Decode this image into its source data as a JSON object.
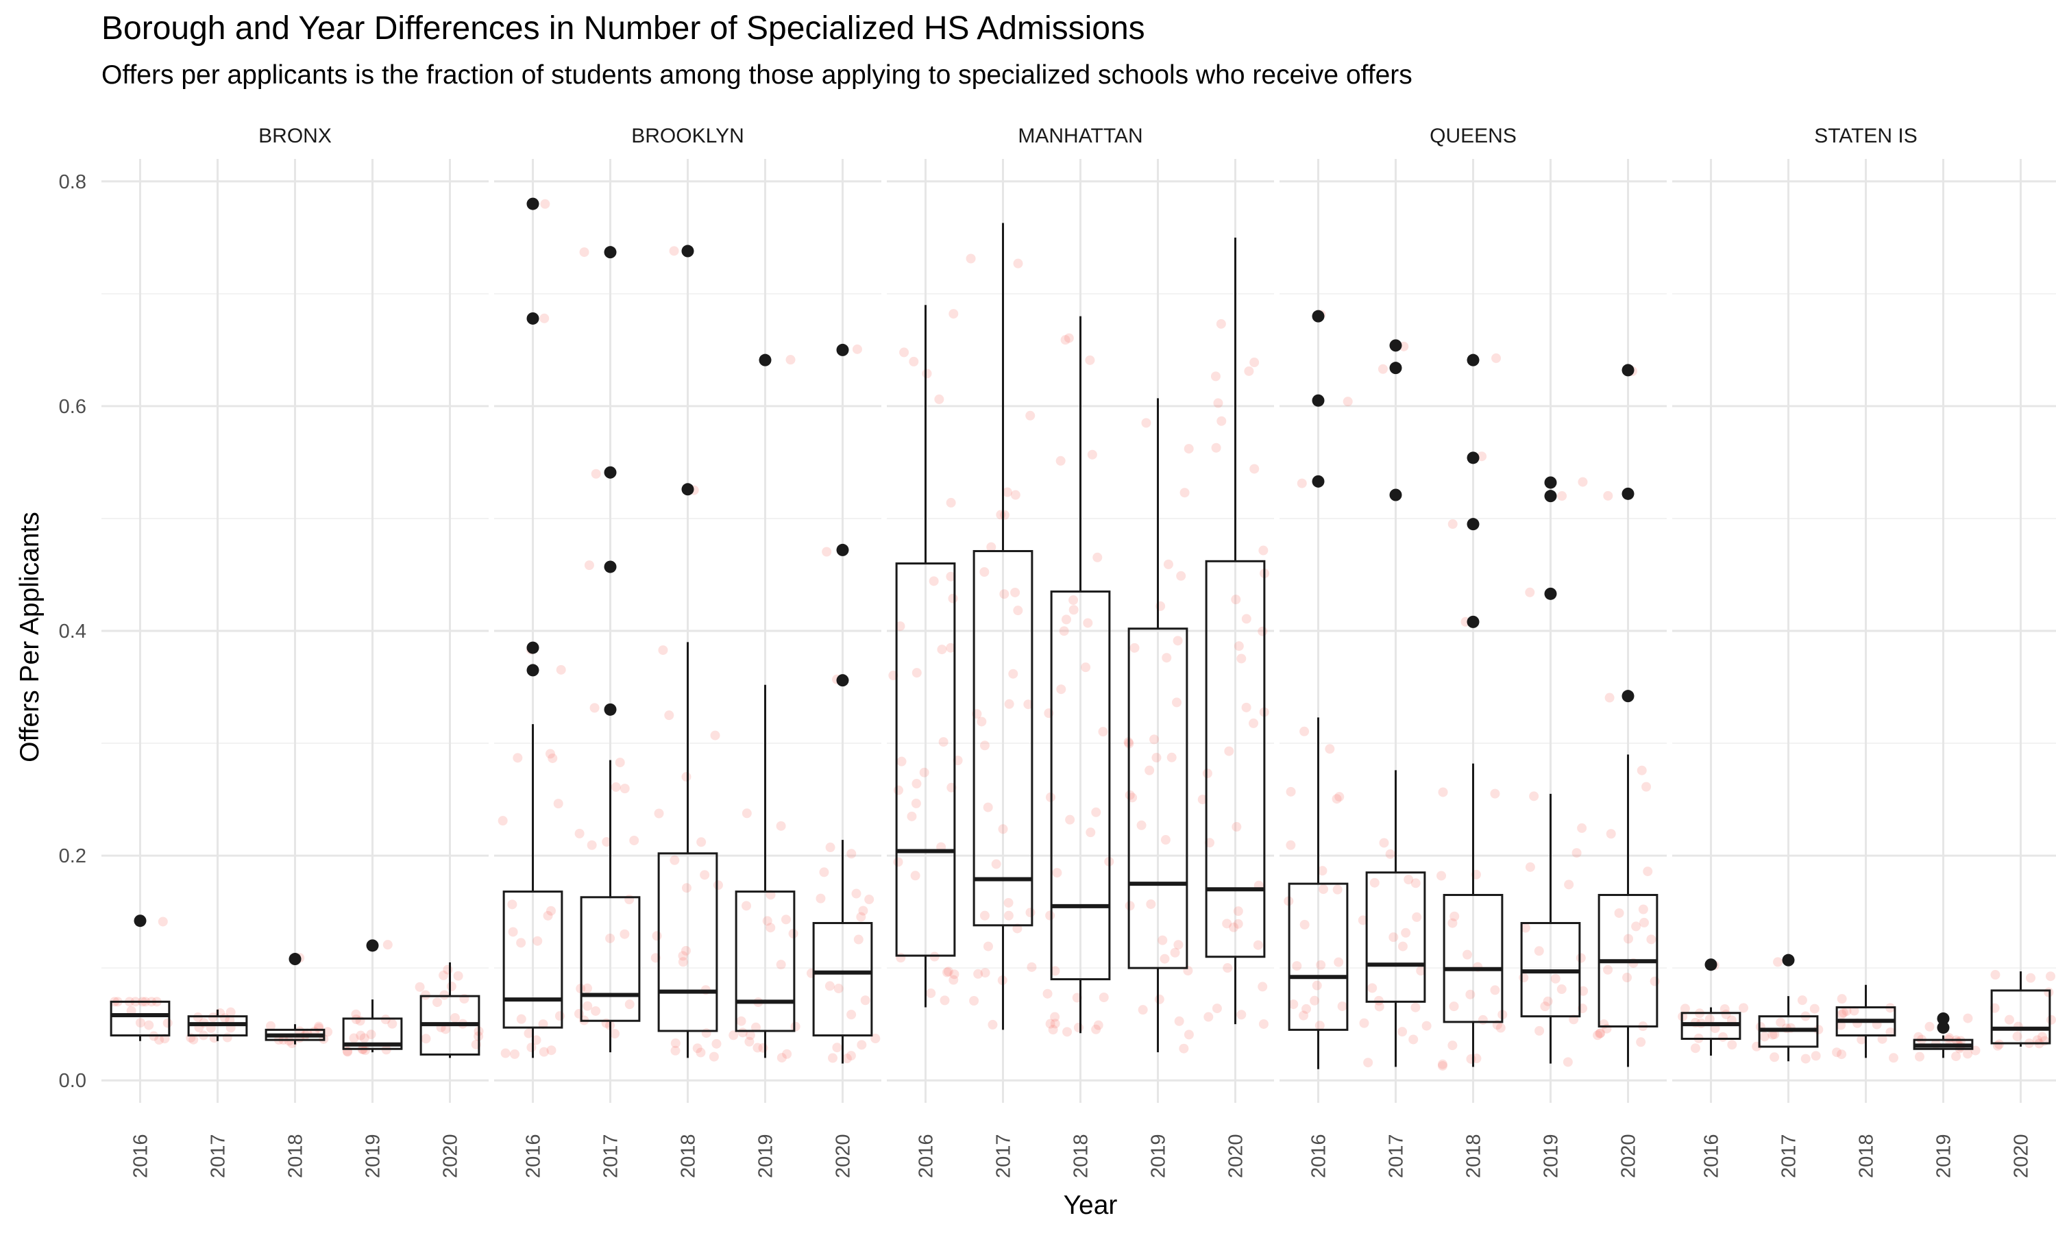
{
  "chart_data": {
    "type": "box",
    "title": "Borough and Year Differences in Number of Specialized HS Admissions",
    "subtitle": "Offers per applicants is the fraction of students among those applying to specialized schools who receive offers",
    "xlabel": "Year",
    "ylabel": "Offers Per Applicants",
    "ylim": [
      -0.02,
      0.82
    ],
    "y_ticks": [
      0.0,
      0.2,
      0.4,
      0.6,
      0.8
    ],
    "y_tick_labels": [
      "0.0",
      "0.2",
      "0.4",
      "0.6",
      "0.8"
    ],
    "grid": true,
    "categories": [
      "2016",
      "2017",
      "2018",
      "2019",
      "2020"
    ],
    "jitter_color": "#F8766D",
    "box_color": "#1a1a1a",
    "facets": [
      {
        "name": "BRONX",
        "boxes": [
          {
            "year": "2016",
            "lower": 0.035,
            "q1": 0.04,
            "median": 0.058,
            "q3": 0.07,
            "upper": 0.07,
            "outliers": [
              0.142
            ]
          },
          {
            "year": "2017",
            "lower": 0.035,
            "q1": 0.04,
            "median": 0.05,
            "q3": 0.057,
            "upper": 0.063,
            "outliers": []
          },
          {
            "year": "2018",
            "lower": 0.032,
            "q1": 0.036,
            "median": 0.04,
            "q3": 0.045,
            "upper": 0.05,
            "outliers": [
              0.108
            ]
          },
          {
            "year": "2019",
            "lower": 0.025,
            "q1": 0.028,
            "median": 0.032,
            "q3": 0.055,
            "upper": 0.072,
            "outliers": [
              0.12
            ]
          },
          {
            "year": "2020",
            "lower": 0.02,
            "q1": 0.023,
            "median": 0.05,
            "q3": 0.075,
            "upper": 0.105,
            "outliers": []
          }
        ]
      },
      {
        "name": "BROOKLYN",
        "boxes": [
          {
            "year": "2016",
            "lower": 0.02,
            "q1": 0.047,
            "median": 0.072,
            "q3": 0.168,
            "upper": 0.317,
            "outliers": [
              0.365,
              0.385,
              0.678,
              0.78
            ]
          },
          {
            "year": "2017",
            "lower": 0.025,
            "q1": 0.053,
            "median": 0.076,
            "q3": 0.163,
            "upper": 0.285,
            "outliers": [
              0.33,
              0.457,
              0.541,
              0.737
            ]
          },
          {
            "year": "2018",
            "lower": 0.02,
            "q1": 0.044,
            "median": 0.079,
            "q3": 0.202,
            "upper": 0.39,
            "outliers": [
              0.526,
              0.738
            ]
          },
          {
            "year": "2019",
            "lower": 0.02,
            "q1": 0.044,
            "median": 0.07,
            "q3": 0.168,
            "upper": 0.352,
            "outliers": [
              0.641
            ]
          },
          {
            "year": "2020",
            "lower": 0.015,
            "q1": 0.04,
            "median": 0.096,
            "q3": 0.14,
            "upper": 0.214,
            "outliers": [
              0.356,
              0.472,
              0.65
            ]
          }
        ]
      },
      {
        "name": "MANHATTAN",
        "boxes": [
          {
            "year": "2016",
            "lower": 0.065,
            "q1": 0.111,
            "median": 0.204,
            "q3": 0.46,
            "upper": 0.69,
            "outliers": []
          },
          {
            "year": "2017",
            "lower": 0.045,
            "q1": 0.138,
            "median": 0.179,
            "q3": 0.471,
            "upper": 0.763,
            "outliers": []
          },
          {
            "year": "2018",
            "lower": 0.042,
            "q1": 0.09,
            "median": 0.155,
            "q3": 0.435,
            "upper": 0.68,
            "outliers": []
          },
          {
            "year": "2019",
            "lower": 0.025,
            "q1": 0.1,
            "median": 0.175,
            "q3": 0.402,
            "upper": 0.607,
            "outliers": []
          },
          {
            "year": "2020",
            "lower": 0.05,
            "q1": 0.11,
            "median": 0.17,
            "q3": 0.462,
            "upper": 0.75,
            "outliers": []
          }
        ]
      },
      {
        "name": "QUEENS",
        "boxes": [
          {
            "year": "2016",
            "lower": 0.01,
            "q1": 0.045,
            "median": 0.092,
            "q3": 0.175,
            "upper": 0.323,
            "outliers": [
              0.533,
              0.605,
              0.68
            ]
          },
          {
            "year": "2017",
            "lower": 0.012,
            "q1": 0.07,
            "median": 0.103,
            "q3": 0.185,
            "upper": 0.276,
            "outliers": [
              0.521,
              0.634,
              0.654
            ]
          },
          {
            "year": "2018",
            "lower": 0.012,
            "q1": 0.052,
            "median": 0.099,
            "q3": 0.165,
            "upper": 0.282,
            "outliers": [
              0.408,
              0.495,
              0.554,
              0.641
            ]
          },
          {
            "year": "2019",
            "lower": 0.015,
            "q1": 0.057,
            "median": 0.097,
            "q3": 0.14,
            "upper": 0.255,
            "outliers": [
              0.433,
              0.52,
              0.532
            ]
          },
          {
            "year": "2020",
            "lower": 0.012,
            "q1": 0.048,
            "median": 0.106,
            "q3": 0.165,
            "upper": 0.29,
            "outliers": [
              0.342,
              0.522,
              0.632
            ]
          }
        ]
      },
      {
        "name": "STATEN IS",
        "boxes": [
          {
            "year": "2016",
            "lower": 0.022,
            "q1": 0.037,
            "median": 0.05,
            "q3": 0.06,
            "upper": 0.065,
            "outliers": [
              0.103
            ]
          },
          {
            "year": "2017",
            "lower": 0.017,
            "q1": 0.03,
            "median": 0.045,
            "q3": 0.057,
            "upper": 0.075,
            "outliers": [
              0.107
            ]
          },
          {
            "year": "2018",
            "lower": 0.02,
            "q1": 0.04,
            "median": 0.053,
            "q3": 0.065,
            "upper": 0.085,
            "outliers": []
          },
          {
            "year": "2019",
            "lower": 0.02,
            "q1": 0.028,
            "median": 0.031,
            "q3": 0.036,
            "upper": 0.04,
            "outliers": [
              0.047,
              0.055
            ]
          },
          {
            "year": "2020",
            "lower": 0.03,
            "q1": 0.033,
            "median": 0.046,
            "q3": 0.08,
            "upper": 0.097,
            "outliers": []
          }
        ]
      }
    ]
  }
}
